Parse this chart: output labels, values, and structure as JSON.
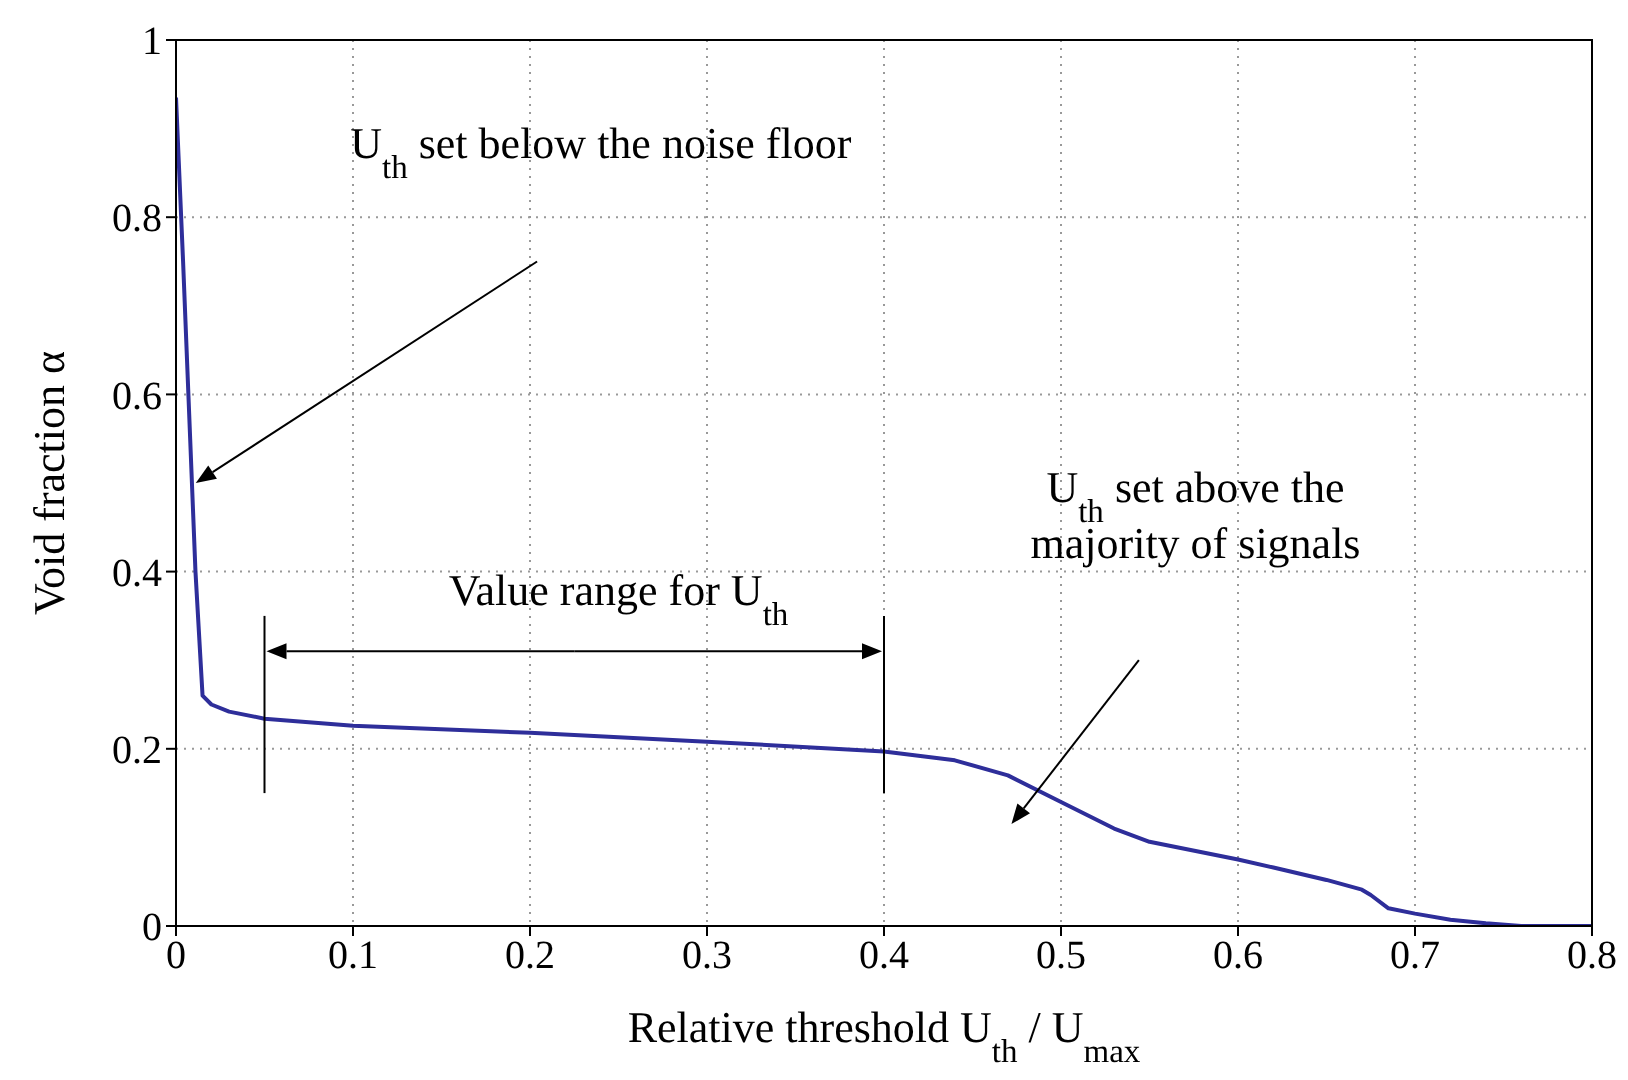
{
  "chart_data": {
    "type": "line",
    "xlabel": "Relative threshold U$_{th}$ / U$_{max}$",
    "ylabel": "Void fraction α",
    "x": [
      0,
      0.004,
      0.008,
      0.011,
      0.015,
      0.02,
      0.03,
      0.05,
      0.1,
      0.2,
      0.3,
      0.4,
      0.44,
      0.47,
      0.5,
      0.53,
      0.55,
      0.6,
      0.62,
      0.65,
      0.67,
      0.675,
      0.685,
      0.7,
      0.72,
      0.74,
      0.76,
      0.78,
      0.8
    ],
    "series": [
      {
        "color": "#2e2e9a",
        "values": [
          0.935,
          0.75,
          0.55,
          0.4,
          0.26,
          0.25,
          0.242,
          0.234,
          0.226,
          0.218,
          0.208,
          0.197,
          0.187,
          0.17,
          0.14,
          0.11,
          0.095,
          0.075,
          0.066,
          0.052,
          0.041,
          0.035,
          0.02,
          0.014,
          0.007,
          0.003,
          0,
          0,
          0
        ]
      }
    ],
    "xlim": [
      0,
      0.8
    ],
    "xticks": [
      0,
      0.1,
      0.2,
      0.3,
      0.4,
      0.5,
      0.6,
      0.7,
      0.8
    ],
    "ylim": [
      0,
      1
    ],
    "yticks": [
      0,
      0.2,
      0.4,
      0.6,
      0.8,
      1
    ],
    "grid": true,
    "marker": "none",
    "line_style": "solid",
    "annotations": [
      "U$_{th}$ set below the noise floor",
      "Value range for U$_{th}$",
      "U$_{th}$ set above the\nmajority of signals"
    ]
  }
}
